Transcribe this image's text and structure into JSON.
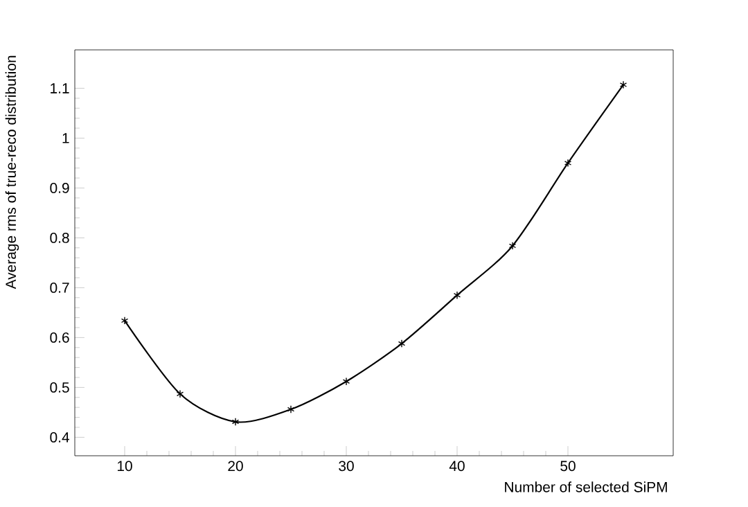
{
  "chart_data": {
    "type": "line",
    "xlabel": "Number of selected SiPM",
    "ylabel": "Average rms of true-reco distribution",
    "x": [
      10,
      15,
      20,
      25,
      30,
      35,
      40,
      45,
      50,
      55
    ],
    "series": [
      {
        "color": "#000000",
        "values": [
          0.634,
          0.487,
          0.431,
          0.456,
          0.512,
          0.588,
          0.685,
          0.784,
          0.95,
          1.107
        ]
      }
    ],
    "xlim": [
      5.5,
      59.5
    ],
    "ylim": [
      0.363,
      1.177
    ],
    "xticks": [
      10,
      20,
      30,
      40,
      50
    ],
    "yticks": [
      0.4,
      0.5,
      0.6,
      0.7,
      0.8,
      0.9,
      1,
      1.1
    ],
    "marker": "cross",
    "line_style": "solid",
    "grid": false
  }
}
